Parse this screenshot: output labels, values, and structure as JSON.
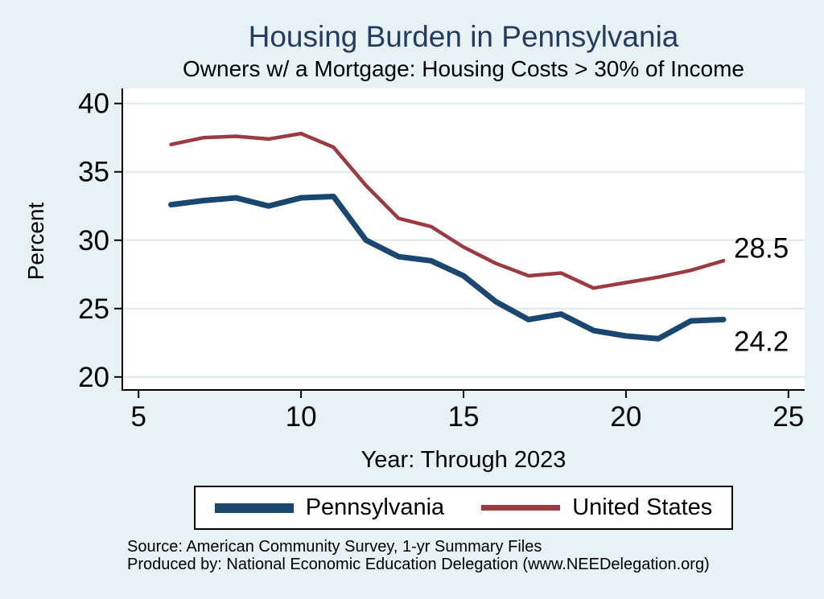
{
  "header": {
    "title": "Housing Burden in Pennsylvania",
    "subtitle": "Owners w/ a Mortgage: Housing Costs > 30% of Income",
    "title_color": "#223c63"
  },
  "chart_data": {
    "type": "line",
    "x": [
      6,
      7,
      8,
      9,
      10,
      11,
      12,
      13,
      14,
      15,
      16,
      17,
      18,
      19,
      20,
      21,
      22,
      23
    ],
    "series": [
      {
        "name": "Pennsylvania",
        "color": "#1a476f",
        "line_width": 7,
        "values": [
          32.6,
          32.9,
          33.1,
          32.5,
          33.1,
          33.2,
          30.0,
          28.8,
          28.5,
          27.4,
          25.5,
          24.2,
          24.6,
          23.4,
          23.0,
          22.8,
          24.1,
          24.2
        ],
        "end_label": "24.2",
        "end_label_side": "below"
      },
      {
        "name": "United States",
        "color": "#9c3a41",
        "line_width": 4.5,
        "values": [
          37.0,
          37.5,
          37.6,
          37.4,
          37.8,
          36.8,
          34.0,
          31.6,
          31.0,
          29.5,
          28.3,
          27.4,
          27.6,
          26.5,
          26.9,
          27.3,
          27.8,
          28.5
        ],
        "end_label": "28.5",
        "end_label_side": "above"
      }
    ],
    "title": "Housing Burden in Pennsylvania",
    "subtitle": "Owners w/ a Mortgage: Housing Costs > 30% of Income",
    "xlabel": "Year: Through 2023",
    "ylabel": "Percent",
    "x_ticks": [
      5,
      10,
      15,
      20,
      25
    ],
    "y_ticks": [
      20,
      25,
      30,
      35,
      40
    ],
    "xlim": [
      4.5,
      25.5
    ],
    "ylim": [
      19.05,
      41.1
    ],
    "grid": "horizontal",
    "legend_position": "bottom",
    "plot_bg": "#ffffff",
    "grid_color": "#dde9ec",
    "axis_color": "#000000"
  },
  "footer": {
    "source_line": "Source: American Community Survey, 1-yr Summary Files",
    "produced_line": "Produced by: National Economic Education Delegation (www.NEEDelegation.org)"
  }
}
